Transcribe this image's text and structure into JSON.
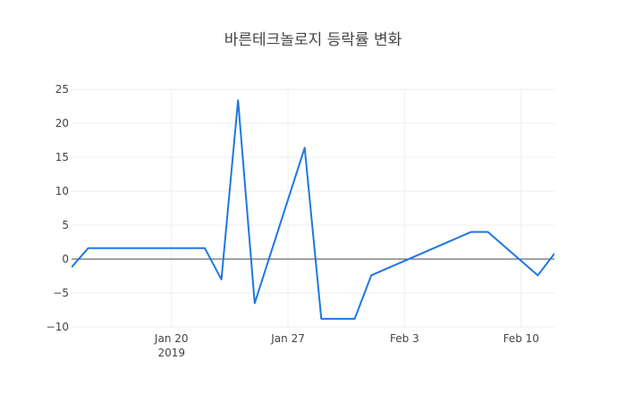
{
  "chart_data": {
    "type": "line",
    "title": "바른테크놀로지 등락률 변화",
    "xlabel": "",
    "ylabel": "",
    "ylim": [
      -10,
      25
    ],
    "yticks": [
      -10,
      -5,
      0,
      5,
      10,
      15,
      20,
      25
    ],
    "ytick_labels": [
      "−10",
      "−5",
      "0",
      "5",
      "10",
      "15",
      "20",
      "25"
    ],
    "xlim": [
      "2019-01-14",
      "2019-02-12"
    ],
    "xticks": [
      "2019-01-20",
      "2019-01-27",
      "2019-02-03",
      "2019-02-10"
    ],
    "xtick_labels": [
      "Jan 20",
      "Jan 27",
      "Feb 3",
      "Feb 10"
    ],
    "xtick_year_label": "2019",
    "grid": true,
    "zero_line": true,
    "series": [
      {
        "name": "",
        "color": "#1f77e0",
        "x": [
          "2019-01-14",
          "2019-01-15",
          "2019-01-16",
          "2019-01-17",
          "2019-01-18",
          "2019-01-21",
          "2019-01-22",
          "2019-01-23",
          "2019-01-24",
          "2019-01-25",
          "2019-01-28",
          "2019-01-29",
          "2019-01-30",
          "2019-01-31",
          "2019-02-01",
          "2019-02-07",
          "2019-02-08",
          "2019-02-11",
          "2019-02-12"
        ],
        "values": [
          -1.2,
          1.6,
          1.6,
          1.6,
          1.6,
          1.6,
          1.6,
          -3.0,
          23.4,
          -6.5,
          16.4,
          -8.8,
          -8.8,
          -8.8,
          -2.4,
          4.0,
          4.0,
          -2.4,
          0.8
        ]
      }
    ]
  }
}
